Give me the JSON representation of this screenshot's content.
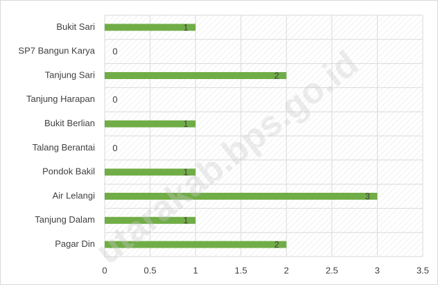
{
  "chart_data": {
    "type": "bar",
    "orientation": "horizontal",
    "categories": [
      "Bukit Sari",
      "SP7 Bangun Karya",
      "Tanjung Sari",
      "Tanjung Harapan",
      "Bukit Berlian",
      "Talang Berantai",
      "Pondok Bakil",
      "Air Lelangi",
      "Tanjung Dalam",
      "Pagar Din"
    ],
    "values": [
      1,
      0,
      2,
      0,
      1,
      0,
      1,
      3,
      1,
      2
    ],
    "color": "#70ad47",
    "xlim": [
      0,
      3.5
    ],
    "xticks": [
      0,
      0.5,
      1,
      1.5,
      2,
      2.5,
      3,
      3.5
    ],
    "grid": true,
    "watermark": "utarakab.bps.go.id"
  }
}
